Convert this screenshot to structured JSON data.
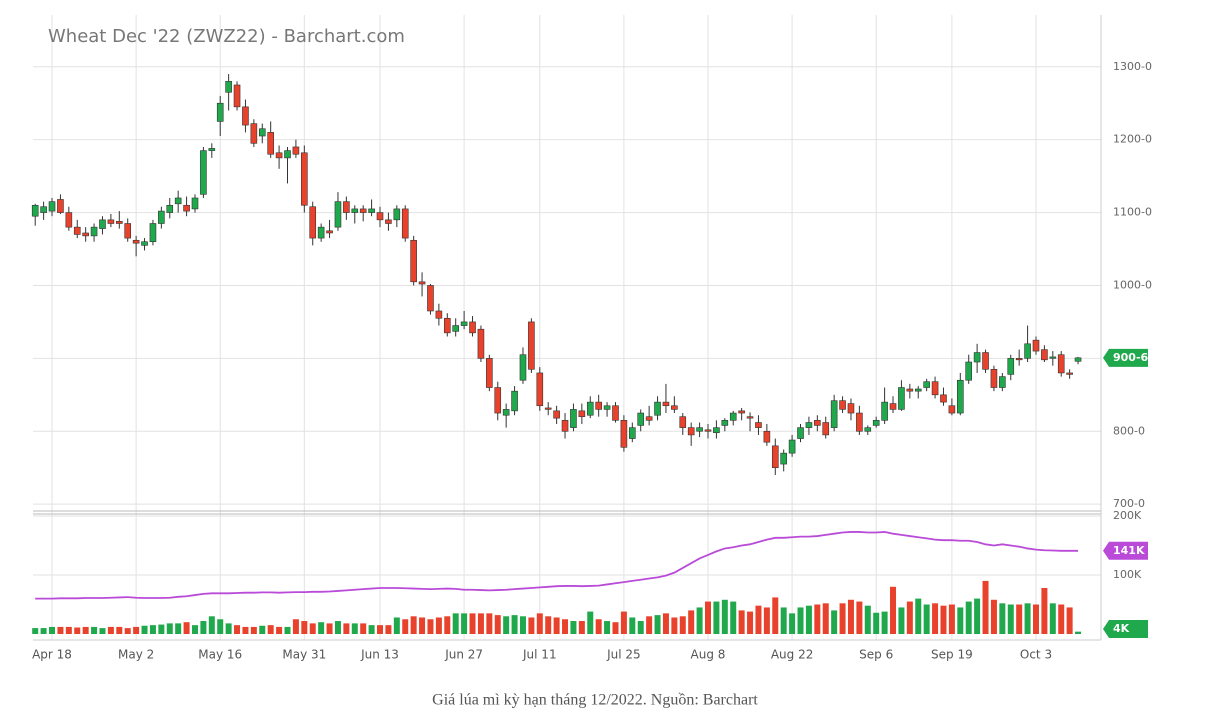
{
  "chart_data": {
    "type": "candlestick",
    "title": "Wheat Dec '22 (ZWZ22) - Barchart.com",
    "categories": [
      null,
      null,
      "Apr 18",
      null,
      null,
      null,
      null,
      null,
      null,
      null,
      null,
      null,
      "May 2",
      null,
      null,
      null,
      null,
      null,
      null,
      null,
      null,
      null,
      "May 16",
      null,
      null,
      null,
      null,
      null,
      null,
      null,
      null,
      null,
      "May 31",
      null,
      null,
      null,
      null,
      null,
      null,
      null,
      null,
      "Jun 13",
      null,
      null,
      null,
      null,
      null,
      null,
      null,
      null,
      null,
      "Jun 27",
      null,
      null,
      null,
      null,
      null,
      null,
      null,
      null,
      "Jul 11",
      null,
      null,
      null,
      null,
      null,
      null,
      null,
      null,
      null,
      "Jul 25",
      null,
      null,
      null,
      null,
      null,
      null,
      null,
      null,
      null,
      "Aug 8",
      null,
      null,
      null,
      null,
      null,
      null,
      null,
      null,
      null,
      "Aug 22",
      null,
      null,
      null,
      null,
      null,
      null,
      null,
      null,
      null,
      "Sep 6",
      null,
      null,
      null,
      null,
      null,
      null,
      null,
      null,
      "Sep 19",
      null,
      null,
      null,
      null,
      null,
      null,
      null,
      null,
      null,
      "Oct 3",
      null,
      null,
      null,
      null,
      null
    ],
    "ohlc": [
      [
        1095,
        1112,
        1082,
        1110
      ],
      [
        1100,
        1115,
        1090,
        1108
      ],
      [
        1102,
        1120,
        1095,
        1115
      ],
      [
        1118,
        1125,
        1098,
        1100
      ],
      [
        1100,
        1108,
        1075,
        1080
      ],
      [
        1080,
        1090,
        1065,
        1070
      ],
      [
        1072,
        1080,
        1060,
        1068
      ],
      [
        1068,
        1085,
        1060,
        1080
      ],
      [
        1078,
        1095,
        1070,
        1090
      ],
      [
        1090,
        1098,
        1080,
        1085
      ],
      [
        1088,
        1102,
        1078,
        1085
      ],
      [
        1085,
        1092,
        1060,
        1065
      ],
      [
        1062,
        1068,
        1040,
        1058
      ],
      [
        1055,
        1065,
        1048,
        1060
      ],
      [
        1060,
        1090,
        1055,
        1085
      ],
      [
        1085,
        1108,
        1078,
        1102
      ],
      [
        1100,
        1120,
        1092,
        1110
      ],
      [
        1112,
        1130,
        1100,
        1120
      ],
      [
        1110,
        1122,
        1095,
        1102
      ],
      [
        1105,
        1125,
        1100,
        1120
      ],
      [
        1125,
        1190,
        1120,
        1185
      ],
      [
        1185,
        1195,
        1175,
        1188
      ],
      [
        1225,
        1260,
        1205,
        1250
      ],
      [
        1265,
        1290,
        1240,
        1280
      ],
      [
        1275,
        1280,
        1240,
        1245
      ],
      [
        1245,
        1255,
        1210,
        1220
      ],
      [
        1222,
        1228,
        1190,
        1195
      ],
      [
        1205,
        1222,
        1195,
        1215
      ],
      [
        1210,
        1225,
        1175,
        1180
      ],
      [
        1182,
        1192,
        1160,
        1175
      ],
      [
        1175,
        1190,
        1140,
        1185
      ],
      [
        1190,
        1200,
        1175,
        1180
      ],
      [
        1182,
        1192,
        1100,
        1110
      ],
      [
        1108,
        1115,
        1055,
        1065
      ],
      [
        1065,
        1085,
        1060,
        1080
      ],
      [
        1075,
        1090,
        1065,
        1072
      ],
      [
        1080,
        1128,
        1075,
        1115
      ],
      [
        1115,
        1122,
        1090,
        1100
      ],
      [
        1100,
        1110,
        1085,
        1105
      ],
      [
        1105,
        1110,
        1088,
        1100
      ],
      [
        1100,
        1118,
        1095,
        1105
      ],
      [
        1100,
        1108,
        1080,
        1090
      ],
      [
        1090,
        1100,
        1075,
        1085
      ],
      [
        1090,
        1110,
        1080,
        1105
      ],
      [
        1105,
        1110,
        1060,
        1065
      ],
      [
        1062,
        1068,
        1000,
        1005
      ],
      [
        1005,
        1018,
        985,
        1002
      ],
      [
        1000,
        1002,
        960,
        965
      ],
      [
        965,
        975,
        945,
        955
      ],
      [
        955,
        962,
        930,
        935
      ],
      [
        937,
        955,
        930,
        945
      ],
      [
        945,
        965,
        940,
        950
      ],
      [
        950,
        958,
        930,
        935
      ],
      [
        940,
        945,
        895,
        900
      ],
      [
        900,
        905,
        855,
        860
      ],
      [
        860,
        868,
        815,
        825
      ],
      [
        822,
        838,
        805,
        830
      ],
      [
        828,
        862,
        822,
        855
      ],
      [
        870,
        915,
        865,
        905
      ],
      [
        950,
        955,
        880,
        885
      ],
      [
        880,
        888,
        828,
        835
      ],
      [
        832,
        840,
        822,
        830
      ],
      [
        828,
        835,
        810,
        818
      ],
      [
        815,
        825,
        790,
        800
      ],
      [
        805,
        838,
        800,
        830
      ],
      [
        828,
        838,
        810,
        820
      ],
      [
        822,
        848,
        818,
        840
      ],
      [
        840,
        850,
        820,
        830
      ],
      [
        830,
        840,
        820,
        835
      ],
      [
        835,
        840,
        812,
        815
      ],
      [
        815,
        822,
        772,
        778
      ],
      [
        790,
        812,
        785,
        805
      ],
      [
        808,
        830,
        800,
        825
      ],
      [
        820,
        835,
        808,
        815
      ],
      [
        822,
        848,
        815,
        840
      ],
      [
        840,
        865,
        825,
        835
      ],
      [
        835,
        848,
        825,
        830
      ],
      [
        820,
        825,
        795,
        805
      ],
      [
        805,
        812,
        780,
        795
      ],
      [
        800,
        812,
        792,
        805
      ],
      [
        802,
        810,
        790,
        800
      ],
      [
        798,
        815,
        790,
        805
      ],
      [
        808,
        818,
        800,
        815
      ],
      [
        815,
        828,
        808,
        825
      ],
      [
        828,
        832,
        815,
        825
      ],
      [
        820,
        826,
        800,
        818
      ],
      [
        812,
        822,
        795,
        805
      ],
      [
        800,
        810,
        780,
        785
      ],
      [
        780,
        790,
        740,
        750
      ],
      [
        755,
        775,
        745,
        770
      ],
      [
        770,
        795,
        765,
        788
      ],
      [
        790,
        810,
        785,
        805
      ],
      [
        805,
        820,
        795,
        812
      ],
      [
        815,
        822,
        800,
        808
      ],
      [
        812,
        820,
        790,
        795
      ],
      [
        805,
        850,
        800,
        842
      ],
      [
        842,
        848,
        825,
        830
      ],
      [
        838,
        845,
        815,
        825
      ],
      [
        825,
        835,
        795,
        800
      ],
      [
        800,
        808,
        795,
        805
      ],
      [
        808,
        820,
        805,
        815
      ],
      [
        815,
        860,
        810,
        840
      ],
      [
        838,
        848,
        825,
        830
      ],
      [
        830,
        870,
        828,
        860
      ],
      [
        858,
        865,
        845,
        855
      ],
      [
        855,
        862,
        845,
        858
      ],
      [
        860,
        872,
        855,
        868
      ],
      [
        868,
        875,
        845,
        850
      ],
      [
        850,
        860,
        835,
        840
      ],
      [
        835,
        845,
        822,
        825
      ],
      [
        825,
        880,
        822,
        870
      ],
      [
        870,
        905,
        865,
        895
      ],
      [
        895,
        920,
        880,
        908
      ],
      [
        908,
        912,
        880,
        885
      ],
      [
        885,
        890,
        855,
        860
      ],
      [
        860,
        880,
        855,
        875
      ],
      [
        878,
        905,
        870,
        900
      ],
      [
        900,
        912,
        890,
        898
      ],
      [
        900,
        945,
        895,
        920
      ],
      [
        925,
        930,
        905,
        910
      ],
      [
        912,
        918,
        895,
        898
      ],
      [
        900,
        910,
        890,
        902
      ],
      [
        905,
        910,
        875,
        880
      ],
      [
        880,
        885,
        872,
        878
      ],
      [
        896,
        902,
        892,
        900.75
      ]
    ],
    "up_color": "#20a84c",
    "down_color": "#e8422c",
    "ylim": [
      692,
      1371
    ],
    "yticks": [
      {
        "value": 700,
        "label": "700-0"
      },
      {
        "value": 800,
        "label": "800-0"
      },
      {
        "value": 900,
        "label": "900-0"
      },
      {
        "value": 1000,
        "label": "1000-0"
      },
      {
        "value": 1100,
        "label": "1100-0"
      },
      {
        "value": 1200,
        "label": "1200-0"
      },
      {
        "value": 1300,
        "label": "1300-0"
      }
    ],
    "last_price_label": "900-6",
    "grid": true,
    "volume": {
      "values": [
        10000,
        10000,
        12000,
        12000,
        12000,
        11000,
        12000,
        12000,
        10000,
        12000,
        12000,
        10000,
        12000,
        14000,
        15000,
        16000,
        18000,
        18000,
        20000,
        15000,
        22000,
        30000,
        25000,
        18000,
        15000,
        12000,
        12000,
        14000,
        15000,
        12000,
        12000,
        25000,
        22000,
        18000,
        20000,
        18000,
        22000,
        18000,
        18000,
        18000,
        15000,
        15000,
        15000,
        28000,
        25000,
        30000,
        28000,
        25000,
        28000,
        30000,
        35000,
        35000,
        35000,
        35000,
        35000,
        32000,
        30000,
        32000,
        30000,
        28000,
        35000,
        30000,
        28000,
        25000,
        22000,
        22000,
        38000,
        25000,
        22000,
        20000,
        38000,
        28000,
        22000,
        30000,
        32000,
        35000,
        28000,
        30000,
        40000,
        45000,
        55000,
        55000,
        58000,
        55000,
        40000,
        38000,
        48000,
        45000,
        62000,
        45000,
        35000,
        45000,
        48000,
        50000,
        52000,
        40000,
        52000,
        58000,
        55000,
        48000,
        36000,
        38000,
        80000,
        45000,
        55000,
        60000,
        50000,
        52000,
        48000,
        50000,
        45000,
        55000,
        60000,
        90000,
        58000,
        52000,
        50000,
        50000,
        52000,
        50000,
        78000,
        52000,
        50000,
        45000,
        4000
      ],
      "last_label": "4K",
      "ylim": [
        0,
        200000
      ],
      "yticks": [
        {
          "value": 100000,
          "label": "100K"
        },
        {
          "value": 200000,
          "label": "200K"
        }
      ]
    },
    "open_interest": {
      "color": "#b94bd8",
      "values": [
        60000,
        60000,
        60000,
        60500,
        60500,
        60500,
        61000,
        61000,
        61000,
        61500,
        62000,
        62500,
        61500,
        61000,
        61000,
        61000,
        61500,
        63000,
        64000,
        66000,
        68000,
        69000,
        69000,
        69000,
        69500,
        70000,
        70000,
        70500,
        70500,
        70000,
        70500,
        71000,
        71000,
        71500,
        71500,
        72000,
        73000,
        74000,
        75000,
        76000,
        77000,
        78000,
        78000,
        78000,
        77500,
        77000,
        76500,
        76000,
        76500,
        77000,
        76500,
        75000,
        75000,
        74500,
        74000,
        74500,
        75000,
        76000,
        77000,
        78000,
        79000,
        80000,
        81000,
        81500,
        81500,
        81000,
        81500,
        82000,
        84000,
        86000,
        88000,
        90000,
        92000,
        94000,
        96000,
        99000,
        104000,
        112000,
        120000,
        128000,
        134000,
        140000,
        145000,
        147000,
        150000,
        152000,
        156000,
        160000,
        163000,
        163000,
        164000,
        165000,
        165000,
        166000,
        168000,
        170000,
        172000,
        173000,
        173000,
        172000,
        172000,
        173000,
        170000,
        168000,
        166000,
        164000,
        162000,
        160000,
        159000,
        159000,
        158000,
        158000,
        156000,
        152000,
        150000,
        152000,
        150000,
        148000,
        145000,
        143000,
        142000,
        141500,
        141000,
        141000,
        141000
      ],
      "last_label": "141K"
    }
  },
  "caption": "Giá lúa mì kỳ hạn tháng 12/2022. Nguồn: Barchart"
}
